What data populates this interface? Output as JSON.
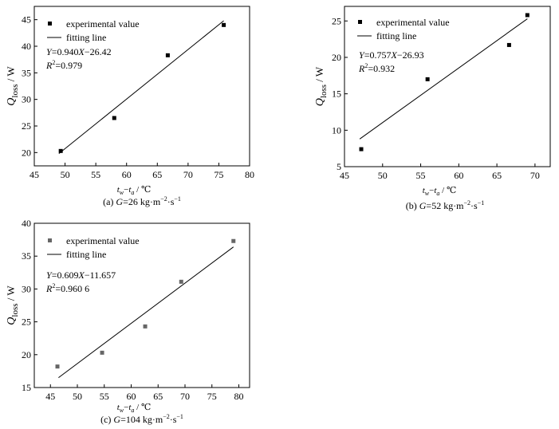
{
  "chart_data": [
    {
      "type": "scatter",
      "caption_prefix": "(a) ",
      "caption_var": "G",
      "caption_rest": "=26 kg·m",
      "caption_exp1": "−2",
      "caption_mid": "·s",
      "caption_exp2": "−1",
      "xlabel": {
        "a": "t",
        "s1": "w",
        "minus": "−",
        "b": "t",
        "s2": "a",
        "unit": "/  ℃"
      },
      "ylabel": {
        "var": "Q",
        "sub": "loss",
        "unit": " / W"
      },
      "xlim": [
        45,
        80
      ],
      "ylim": [
        17.5,
        47.5
      ],
      "xticks": [
        45,
        50,
        55,
        60,
        65,
        70,
        75,
        80
      ],
      "yticks": [
        20,
        25,
        30,
        35,
        40,
        45
      ],
      "legend": {
        "points": "experimental value",
        "line": "fitting line",
        "placement": "top-left"
      },
      "equation": {
        "y": "Y",
        "pre": "=0.940",
        "x": "X",
        "post": "−26.42"
      },
      "r2": {
        "r": "R",
        "exp": "2",
        "val": "=0.979"
      },
      "series": [
        {
          "name": "experimental value",
          "x": [
            49.3,
            58.0,
            66.7,
            75.8
          ],
          "y": [
            20.3,
            26.5,
            38.3,
            44.0
          ],
          "color": "#000000"
        }
      ],
      "fit": {
        "name": "fitting line",
        "x": [
          49.0,
          75.8
        ],
        "y": [
          19.8,
          44.8
        ]
      }
    },
    {
      "type": "scatter",
      "caption_prefix": "(b) ",
      "caption_var": "G",
      "caption_rest": "=52 kg·m",
      "caption_exp1": "−2",
      "caption_mid": "·s",
      "caption_exp2": "−1",
      "xlabel": {
        "a": "t",
        "s1": "w",
        "minus": "−",
        "b": "t",
        "s2": "a",
        "unit": "/  ℃"
      },
      "ylabel": {
        "var": "Q",
        "sub": "loss",
        "unit": " / W"
      },
      "xlim": [
        45,
        72
      ],
      "ylim": [
        5,
        27
      ],
      "xticks": [
        45,
        50,
        55,
        60,
        65,
        70
      ],
      "yticks": [
        5,
        10,
        15,
        20,
        25
      ],
      "legend": {
        "points": "experimental value",
        "line": "fitting line",
        "placement": "top-left"
      },
      "equation": {
        "y": "Y",
        "pre": "=0.757",
        "x": "X",
        "post": "−26.93"
      },
      "r2": {
        "r": "R",
        "exp": "2",
        "val": "=0.932"
      },
      "series": [
        {
          "name": "experimental value",
          "x": [
            47.2,
            55.9,
            66.6,
            69.0
          ],
          "y": [
            7.4,
            17.0,
            21.7,
            25.8
          ],
          "color": "#000000"
        }
      ],
      "fit": {
        "name": "fitting line",
        "x": [
          47.0,
          69.0
        ],
        "y": [
          8.8,
          25.3
        ]
      }
    },
    {
      "type": "scatter",
      "caption_prefix": "(c) ",
      "caption_var": "G",
      "caption_rest": "=104 kg·m",
      "caption_exp1": "−2",
      "caption_mid": "·s",
      "caption_exp2": "−1",
      "xlabel": {
        "a": "t",
        "s1": "w",
        "minus": "−",
        "b": "t",
        "s2": "a",
        "unit": "/  ℃"
      },
      "ylabel": {
        "var": "Q",
        "sub": "loss",
        "unit": " / W"
      },
      "xlim": [
        42,
        82
      ],
      "ylim": [
        15,
        40
      ],
      "xticks": [
        45,
        50,
        55,
        60,
        65,
        70,
        75,
        80
      ],
      "yticks": [
        15,
        20,
        25,
        30,
        35,
        40
      ],
      "legend": {
        "points": "experimental value",
        "line": "fitting line",
        "placement": "top-left"
      },
      "equation": {
        "y": "Y",
        "pre": "=0.609",
        "x": "X",
        "post": "−11.657"
      },
      "r2": {
        "r": "R",
        "exp": "2",
        "val": "=0.960 6"
      },
      "series": [
        {
          "name": "experimental value",
          "x": [
            46.3,
            54.6,
            62.6,
            69.3,
            79.0
          ],
          "y": [
            18.2,
            20.3,
            24.3,
            31.1,
            37.3
          ],
          "color": "#666666"
        }
      ],
      "fit": {
        "name": "fitting line",
        "x": [
          46.5,
          79.0
        ],
        "y": [
          16.5,
          36.4
        ]
      }
    }
  ]
}
